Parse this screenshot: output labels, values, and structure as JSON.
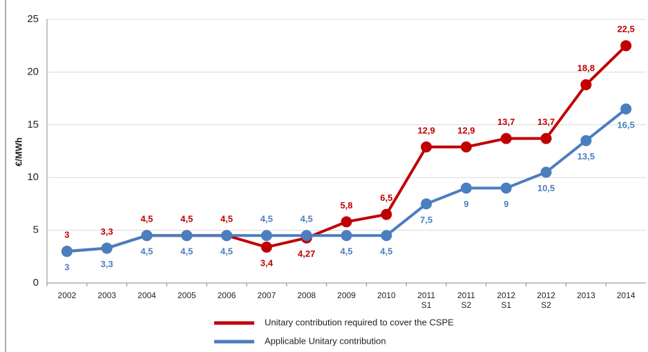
{
  "chart_data": {
    "type": "line",
    "y_label": "€/MWh",
    "categories": [
      "2002",
      "2003",
      "2004",
      "2005",
      "2006",
      "2007",
      "2008",
      "2009",
      "2010",
      "2011 S1",
      "2011 S2",
      "2012 S1",
      "2012 S2",
      "2013",
      "2014"
    ],
    "series": [
      {
        "name": "Unitary contribution required to cover the  CSPE",
        "color": "#c00000",
        "values": [
          3,
          3.3,
          4.5,
          4.5,
          4.5,
          3.4,
          4.27,
          5.8,
          6.5,
          12.9,
          12.9,
          13.7,
          13.7,
          18.8,
          22.5
        ],
        "value_labels": [
          "3",
          "3,3",
          "4,5",
          "4,5",
          "4,5",
          "3,4",
          "4,27",
          "5,8",
          "6,5",
          "12,9",
          "12,9",
          "13,7",
          "13,7",
          "18,8",
          "22,5"
        ]
      },
      {
        "name": "Applicable Unitary contribution",
        "color": "#4a7ebf",
        "values": [
          3,
          3.3,
          4.5,
          4.5,
          4.5,
          4.5,
          4.5,
          4.5,
          4.5,
          7.5,
          9,
          9,
          10.5,
          13.5,
          16.5
        ],
        "value_labels": [
          "3",
          "3,3",
          "4,5",
          "4,5",
          "4,5",
          "4,5",
          "4,5",
          "4,5",
          "4,5",
          "7,5",
          "9",
          "9",
          "10,5",
          "13,5",
          "16,5"
        ]
      }
    ],
    "ylim": [
      0,
      25
    ],
    "yticks": [
      0,
      5,
      10,
      15,
      20,
      25
    ],
    "grid": true
  }
}
